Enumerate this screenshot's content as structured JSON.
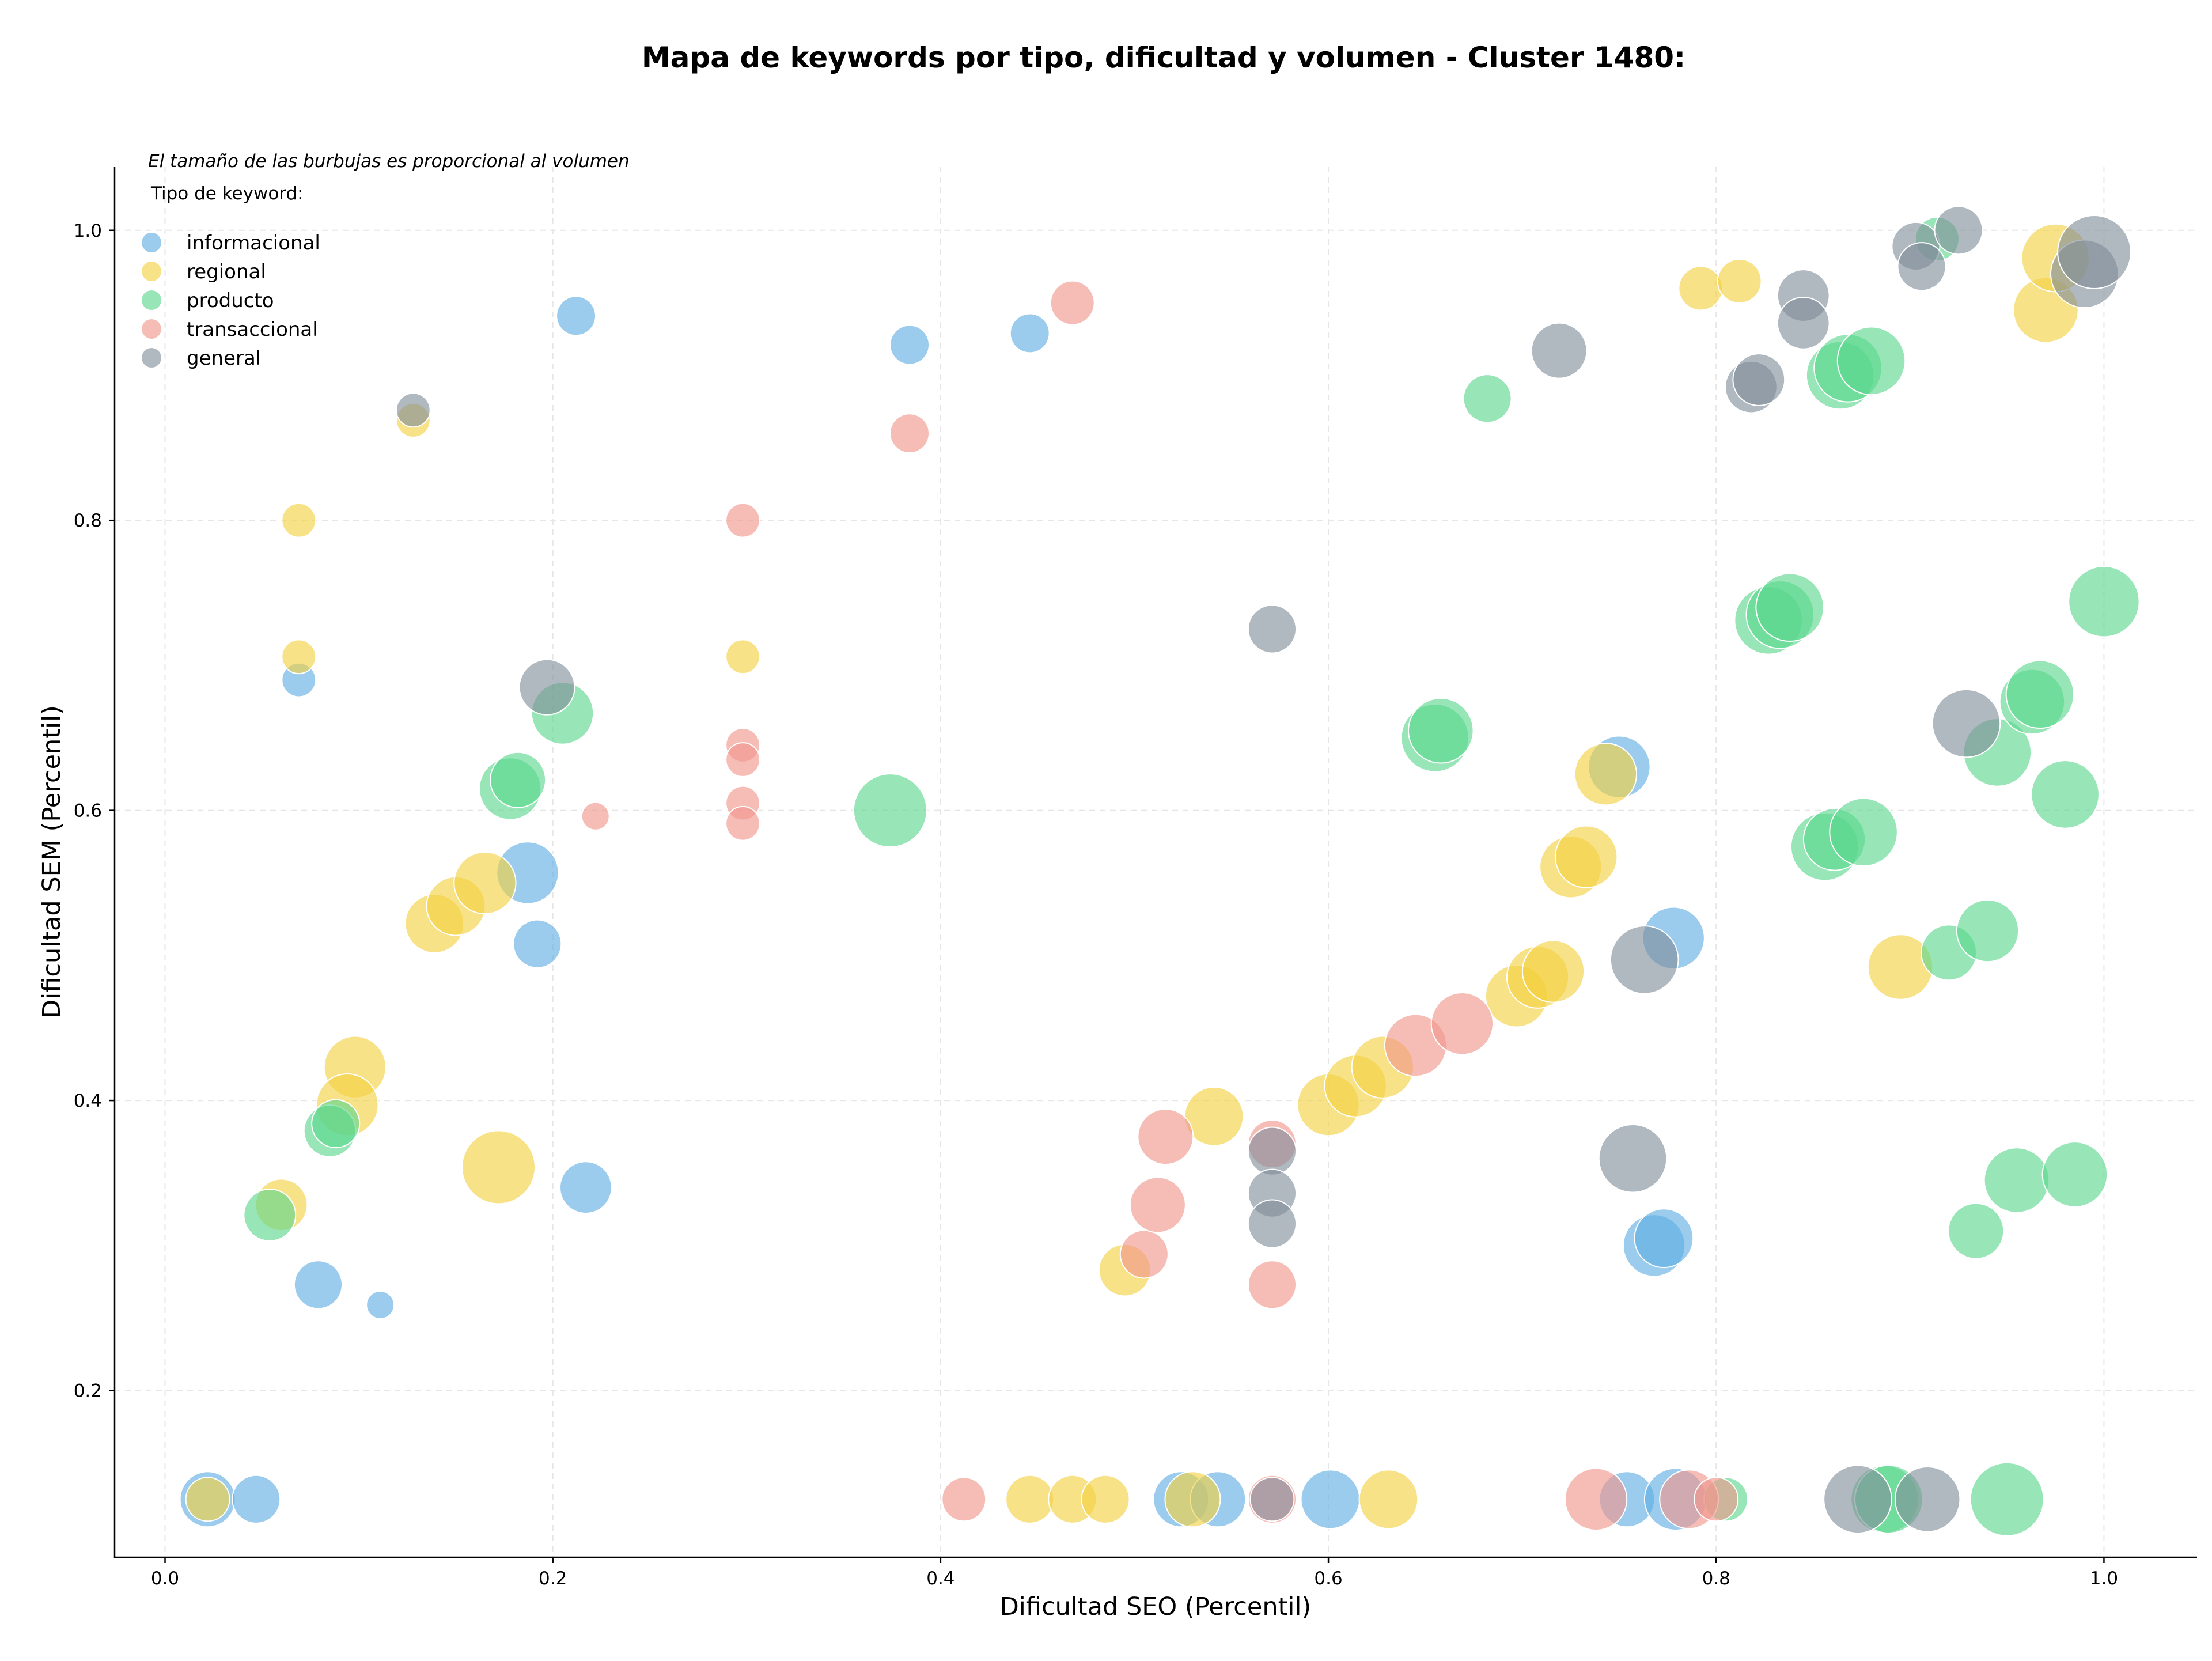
{
  "chart_data": {
    "type": "scatter",
    "title": "Mapa de keywords por tipo, dificultad y volumen - Cluster 1480:",
    "xlabel": "Dificultad SEO (Percentil)",
    "ylabel": "Dificultad SEM (Percentil)",
    "note": "El tamaño de las burbujas es proporcional al volumen",
    "legend_title": "Tipo de keyword:",
    "legend_position": "top-left",
    "xlim": [
      -0.026,
      1.048
    ],
    "ylim": [
      0.085,
      1.044
    ],
    "xticks": [
      "0.0",
      "0.2",
      "0.4",
      "0.6",
      "0.8",
      "1.0"
    ],
    "yticks": [
      "0.2",
      "0.4",
      "0.6",
      "0.8",
      "1.0"
    ],
    "grid": true,
    "series": [
      {
        "name": "informacional",
        "color": "#5DADE2",
        "points": [
          {
            "x": 0.212,
            "y": 0.941,
            "size": 2
          },
          {
            "x": 0.384,
            "y": 0.921,
            "size": 2
          },
          {
            "x": 0.446,
            "y": 0.929,
            "size": 2
          },
          {
            "x": 0.069,
            "y": 0.69,
            "size": 1.5
          },
          {
            "x": 0.187,
            "y": 0.557,
            "size": 5
          },
          {
            "x": 0.192,
            "y": 0.508,
            "size": 3
          },
          {
            "x": 0.079,
            "y": 0.273,
            "size": 3
          },
          {
            "x": 0.111,
            "y": 0.259,
            "size": 1
          },
          {
            "x": 0.217,
            "y": 0.34,
            "size": 3.5
          },
          {
            "x": 0.022,
            "y": 0.125,
            "size": 4
          },
          {
            "x": 0.047,
            "y": 0.125,
            "size": 3
          },
          {
            "x": 0.524,
            "y": 0.125,
            "size": 4
          },
          {
            "x": 0.543,
            "y": 0.125,
            "size": 4
          },
          {
            "x": 0.601,
            "y": 0.125,
            "size": 4.5
          },
          {
            "x": 0.75,
            "y": 0.63,
            "size": 5
          },
          {
            "x": 0.778,
            "y": 0.512,
            "size": 5
          },
          {
            "x": 0.768,
            "y": 0.3,
            "size": 5
          },
          {
            "x": 0.773,
            "y": 0.305,
            "size": 4.5
          },
          {
            "x": 0.754,
            "y": 0.125,
            "size": 4
          },
          {
            "x": 0.779,
            "y": 0.125,
            "size": 5
          }
        ]
      },
      {
        "name": "regional",
        "color": "#F4D03F",
        "points": [
          {
            "x": 0.128,
            "y": 0.869,
            "size": 1.5
          },
          {
            "x": 0.069,
            "y": 0.8,
            "size": 1.5
          },
          {
            "x": 0.069,
            "y": 0.706,
            "size": 1.5
          },
          {
            "x": 0.298,
            "y": 0.706,
            "size": 1.5
          },
          {
            "x": 0.139,
            "y": 0.522,
            "size": 4.5
          },
          {
            "x": 0.15,
            "y": 0.534,
            "size": 4.5
          },
          {
            "x": 0.165,
            "y": 0.55,
            "size": 5
          },
          {
            "x": 0.098,
            "y": 0.423,
            "size": 5
          },
          {
            "x": 0.094,
            "y": 0.397,
            "size": 5
          },
          {
            "x": 0.06,
            "y": 0.328,
            "size": 3.5
          },
          {
            "x": 0.172,
            "y": 0.354,
            "size": 7
          },
          {
            "x": 0.022,
            "y": 0.125,
            "size": 2.5
          },
          {
            "x": 0.446,
            "y": 0.125,
            "size": 3
          },
          {
            "x": 0.468,
            "y": 0.125,
            "size": 3
          },
          {
            "x": 0.485,
            "y": 0.125,
            "size": 3
          },
          {
            "x": 0.495,
            "y": 0.283,
            "size": 3.5
          },
          {
            "x": 0.53,
            "y": 0.125,
            "size": 4
          },
          {
            "x": 0.541,
            "y": 0.389,
            "size": 4.5
          },
          {
            "x": 0.6,
            "y": 0.397,
            "size": 5
          },
          {
            "x": 0.614,
            "y": 0.41,
            "size": 5
          },
          {
            "x": 0.628,
            "y": 0.423,
            "size": 5
          },
          {
            "x": 0.631,
            "y": 0.125,
            "size": 4.5
          },
          {
            "x": 0.697,
            "y": 0.472,
            "size": 5
          },
          {
            "x": 0.708,
            "y": 0.485,
            "size": 5
          },
          {
            "x": 0.716,
            "y": 0.489,
            "size": 5
          },
          {
            "x": 0.725,
            "y": 0.561,
            "size": 5
          },
          {
            "x": 0.733,
            "y": 0.568,
            "size": 5
          },
          {
            "x": 0.743,
            "y": 0.625,
            "size": 5
          },
          {
            "x": 0.792,
            "y": 0.96,
            "size": 2.5
          },
          {
            "x": 0.812,
            "y": 0.965,
            "size": 2.5
          },
          {
            "x": 0.895,
            "y": 0.492,
            "size": 5.5
          },
          {
            "x": 0.97,
            "y": 0.945,
            "size": 5.5
          },
          {
            "x": 0.975,
            "y": 0.981,
            "size": 6
          }
        ]
      },
      {
        "name": "producto",
        "color": "#58D68D",
        "points": [
          {
            "x": 0.682,
            "y": 0.884,
            "size": 3
          },
          {
            "x": 0.205,
            "y": 0.667,
            "size": 5
          },
          {
            "x": 0.178,
            "y": 0.615,
            "size": 5
          },
          {
            "x": 0.182,
            "y": 0.621,
            "size": 4
          },
          {
            "x": 0.374,
            "y": 0.6,
            "size": 7
          },
          {
            "x": 0.085,
            "y": 0.379,
            "size": 3.5
          },
          {
            "x": 0.088,
            "y": 0.384,
            "size": 3
          },
          {
            "x": 0.054,
            "y": 0.321,
            "size": 3.5
          },
          {
            "x": 0.655,
            "y": 0.65,
            "size": 6
          },
          {
            "x": 0.658,
            "y": 0.655,
            "size": 5.5
          },
          {
            "x": 0.805,
            "y": 0.125,
            "size": 2.5
          },
          {
            "x": 0.827,
            "y": 0.731,
            "size": 6
          },
          {
            "x": 0.833,
            "y": 0.735,
            "size": 6
          },
          {
            "x": 0.838,
            "y": 0.74,
            "size": 6
          },
          {
            "x": 0.856,
            "y": 0.575,
            "size": 6
          },
          {
            "x": 0.861,
            "y": 0.58,
            "size": 5
          },
          {
            "x": 0.876,
            "y": 0.585,
            "size": 6
          },
          {
            "x": 0.864,
            "y": 0.9,
            "size": 6
          },
          {
            "x": 0.868,
            "y": 0.905,
            "size": 6
          },
          {
            "x": 0.88,
            "y": 0.91,
            "size": 6
          },
          {
            "x": 0.887,
            "y": 0.125,
            "size": 6
          },
          {
            "x": 0.889,
            "y": 0.125,
            "size": 6
          },
          {
            "x": 0.914,
            "y": 0.994,
            "size": 2.5
          },
          {
            "x": 0.92,
            "y": 0.502,
            "size": 4
          },
          {
            "x": 0.934,
            "y": 0.31,
            "size": 4
          },
          {
            "x": 0.94,
            "y": 0.517,
            "size": 5
          },
          {
            "x": 0.945,
            "y": 0.64,
            "size": 6
          },
          {
            "x": 0.95,
            "y": 0.125,
            "size": 7
          },
          {
            "x": 0.955,
            "y": 0.345,
            "size": 5.5
          },
          {
            "x": 0.963,
            "y": 0.675,
            "size": 5.5
          },
          {
            "x": 0.967,
            "y": 0.68,
            "size": 6
          },
          {
            "x": 0.98,
            "y": 0.611,
            "size": 6
          },
          {
            "x": 0.985,
            "y": 0.349,
            "size": 5.5
          },
          {
            "x": 1.0,
            "y": 0.744,
            "size": 6.5
          }
        ]
      },
      {
        "name": "transaccional",
        "color": "#F1948A",
        "points": [
          {
            "x": 0.468,
            "y": 0.95,
            "size": 2.5
          },
          {
            "x": 0.384,
            "y": 0.86,
            "size": 2
          },
          {
            "x": 0.298,
            "y": 0.8,
            "size": 1.5
          },
          {
            "x": 0.298,
            "y": 0.645,
            "size": 1.5
          },
          {
            "x": 0.298,
            "y": 0.635,
            "size": 1.5
          },
          {
            "x": 0.298,
            "y": 0.605,
            "size": 1.5
          },
          {
            "x": 0.298,
            "y": 0.591,
            "size": 1.5
          },
          {
            "x": 0.222,
            "y": 0.596,
            "size": 1
          },
          {
            "x": 0.412,
            "y": 0.125,
            "size": 2.5
          },
          {
            "x": 0.505,
            "y": 0.294,
            "size": 3
          },
          {
            "x": 0.512,
            "y": 0.328,
            "size": 4
          },
          {
            "x": 0.516,
            "y": 0.375,
            "size": 4
          },
          {
            "x": 0.571,
            "y": 0.37,
            "size": 3
          },
          {
            "x": 0.571,
            "y": 0.273,
            "size": 3
          },
          {
            "x": 0.571,
            "y": 0.125,
            "size": 3
          },
          {
            "x": 0.645,
            "y": 0.438,
            "size": 5
          },
          {
            "x": 0.669,
            "y": 0.453,
            "size": 5
          },
          {
            "x": 0.738,
            "y": 0.125,
            "size": 5
          },
          {
            "x": 0.786,
            "y": 0.125,
            "size": 4.5
          },
          {
            "x": 0.8,
            "y": 0.125,
            "size": 2.5
          }
        ]
      },
      {
        "name": "general",
        "color": "#7F8C9A",
        "points": [
          {
            "x": 0.128,
            "y": 0.876,
            "size": 1.5
          },
          {
            "x": 0.197,
            "y": 0.685,
            "size": 4
          },
          {
            "x": 0.571,
            "y": 0.725,
            "size": 3
          },
          {
            "x": 0.571,
            "y": 0.365,
            "size": 3
          },
          {
            "x": 0.571,
            "y": 0.336,
            "size": 3
          },
          {
            "x": 0.571,
            "y": 0.315,
            "size": 3
          },
          {
            "x": 0.571,
            "y": 0.125,
            "size": 2.5
          },
          {
            "x": 0.719,
            "y": 0.917,
            "size": 4
          },
          {
            "x": 0.757,
            "y": 0.36,
            "size": 6
          },
          {
            "x": 0.763,
            "y": 0.497,
            "size": 6
          },
          {
            "x": 0.818,
            "y": 0.892,
            "size": 3.5
          },
          {
            "x": 0.822,
            "y": 0.897,
            "size": 3.5
          },
          {
            "x": 0.845,
            "y": 0.955,
            "size": 3.5
          },
          {
            "x": 0.845,
            "y": 0.936,
            "size": 3.5
          },
          {
            "x": 0.873,
            "y": 0.125,
            "size": 6
          },
          {
            "x": 0.903,
            "y": 0.989,
            "size": 3
          },
          {
            "x": 0.906,
            "y": 0.975,
            "size": 3
          },
          {
            "x": 0.909,
            "y": 0.125,
            "size": 5.5
          },
          {
            "x": 0.925,
            "y": 1.0,
            "size": 3
          },
          {
            "x": 0.929,
            "y": 0.66,
            "size": 6
          },
          {
            "x": 0.99,
            "y": 0.97,
            "size": 6
          },
          {
            "x": 0.995,
            "y": 0.985,
            "size": 7
          }
        ]
      }
    ]
  }
}
